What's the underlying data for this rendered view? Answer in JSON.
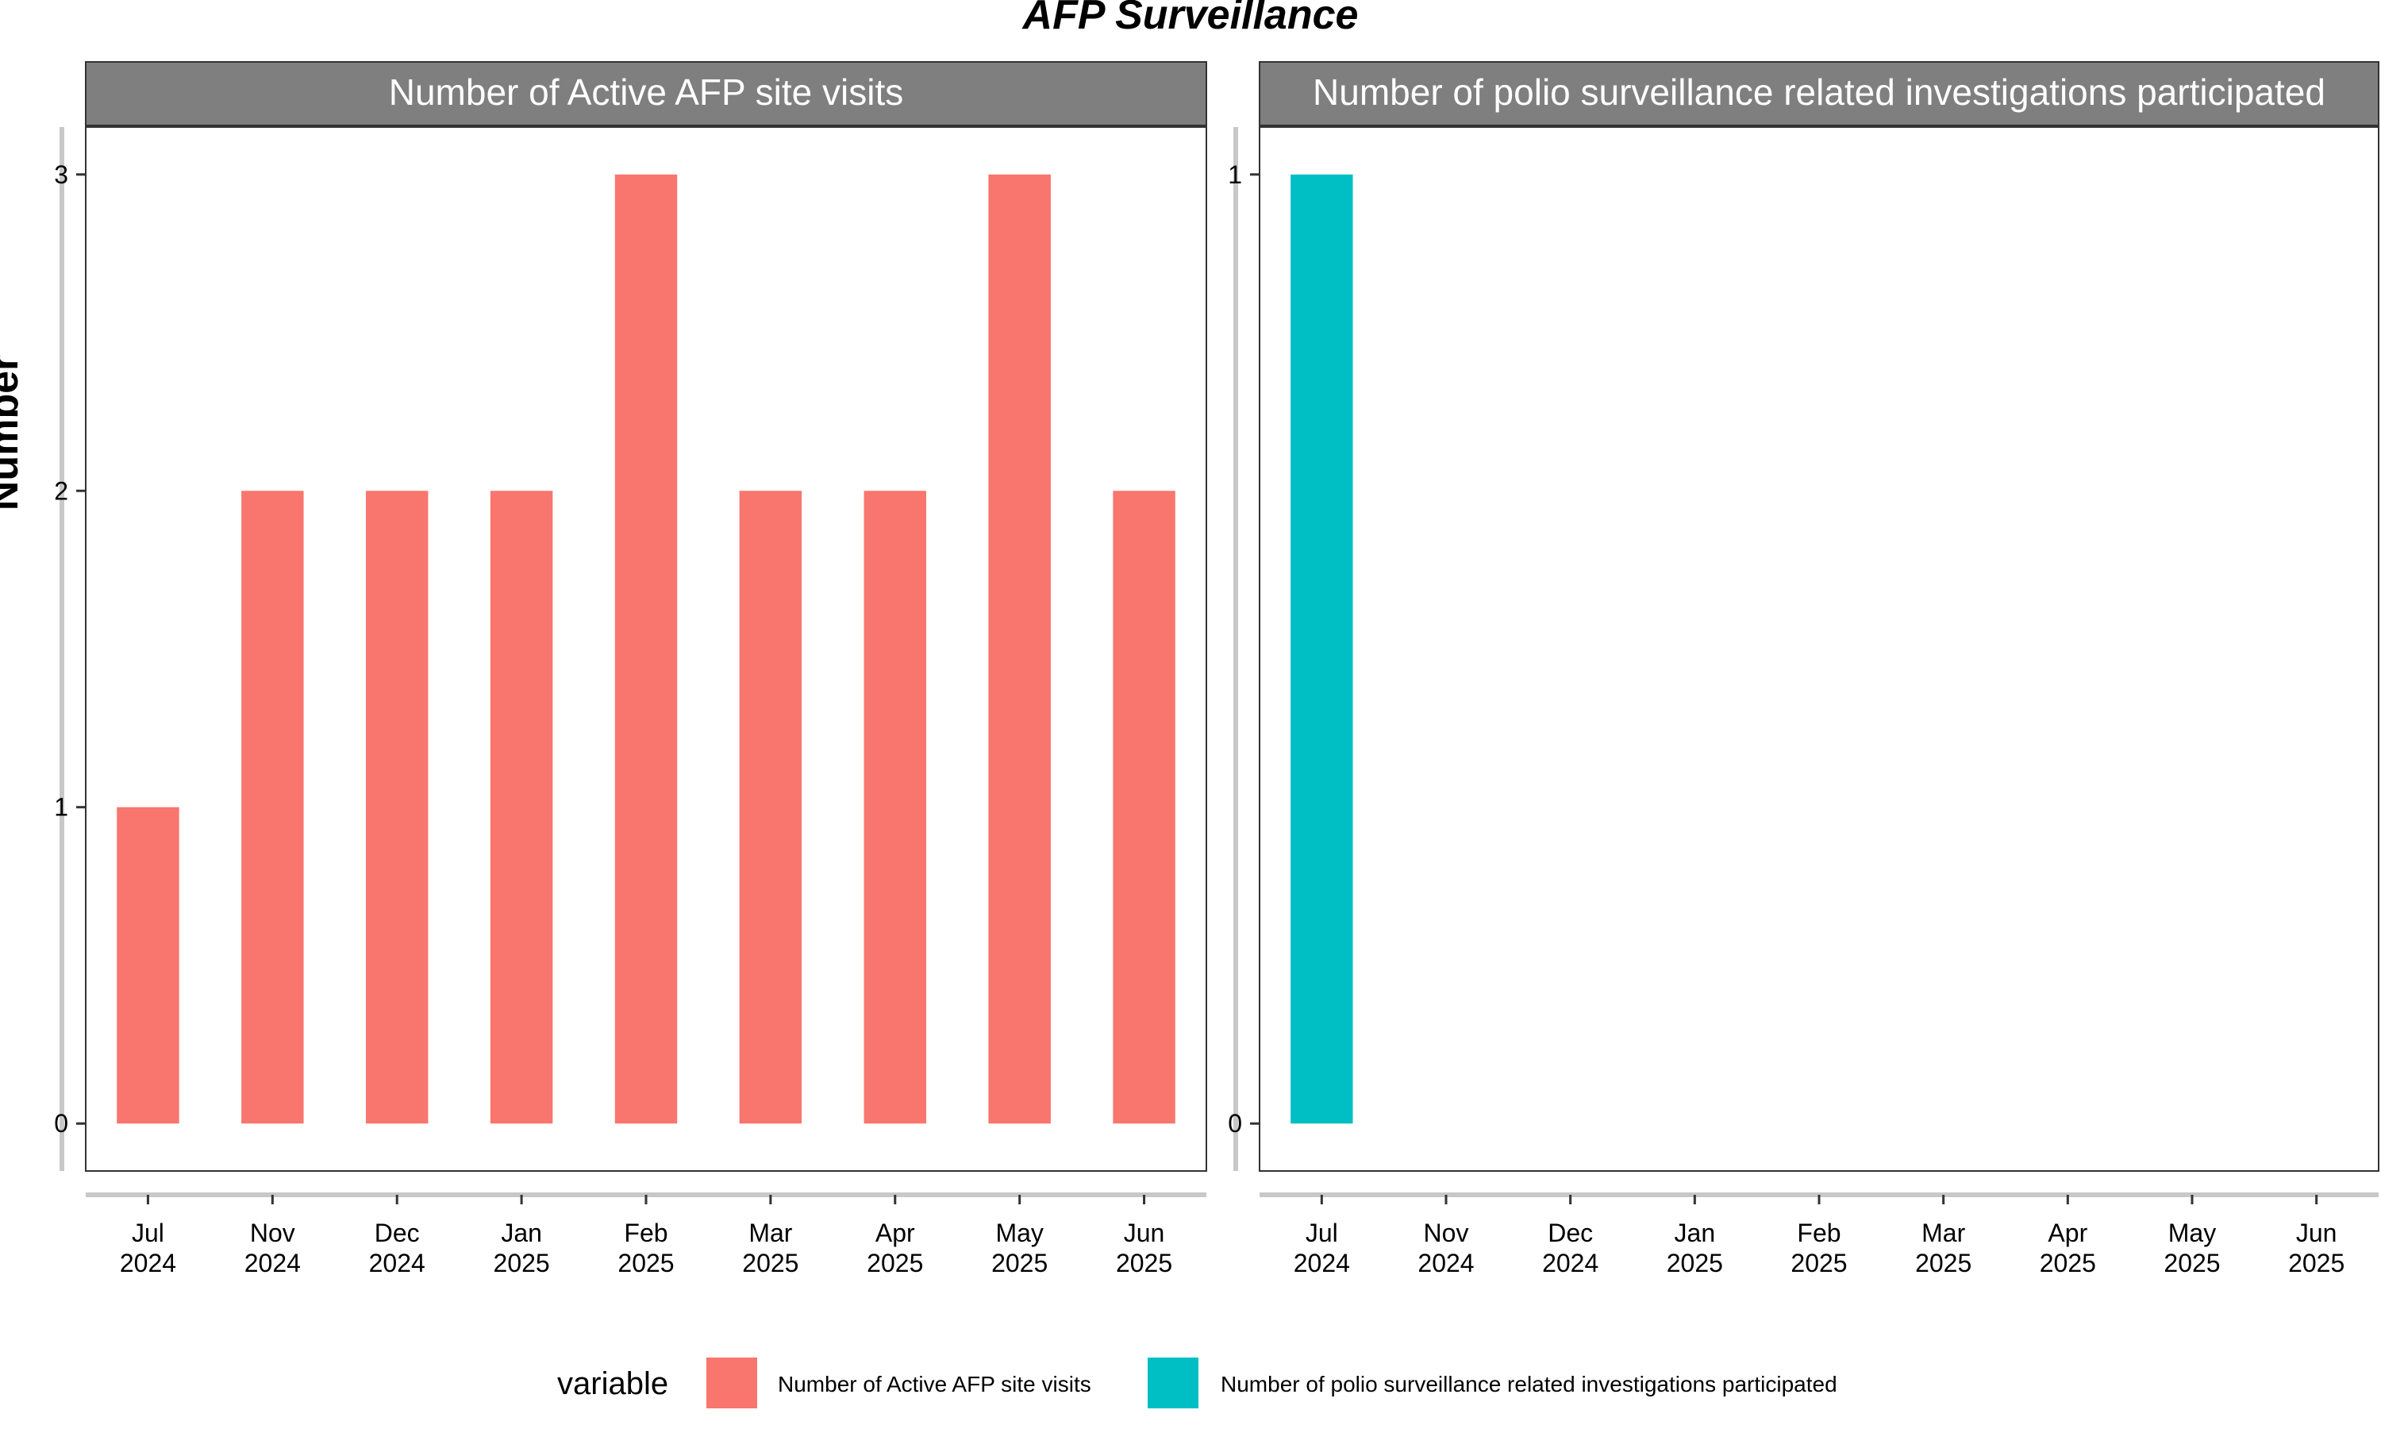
{
  "title": "AFP Surveillance",
  "y_axis_title": "Number",
  "legend": {
    "title": "variable",
    "items": [
      {
        "label": "Number of Active AFP site visits",
        "color": "#F8766D"
      },
      {
        "label": "Number of polio surveillance related investigations participated",
        "color": "#00BFC4"
      }
    ]
  },
  "chart_data": [
    {
      "type": "bar",
      "panel_title": "Number of Active AFP site visits",
      "categories": [
        [
          "Jul",
          "2024"
        ],
        [
          "Nov",
          "2024"
        ],
        [
          "Dec",
          "2024"
        ],
        [
          "Jan",
          "2025"
        ],
        [
          "Feb",
          "2025"
        ],
        [
          "Mar",
          "2025"
        ],
        [
          "Apr",
          "2025"
        ],
        [
          "May",
          "2025"
        ],
        [
          "Jun",
          "2025"
        ]
      ],
      "values": [
        1,
        2,
        2,
        2,
        3,
        2,
        2,
        3,
        2
      ],
      "color": "#F8766D",
      "yticks": [
        "0",
        "1",
        "2",
        "3"
      ],
      "ylim": [
        -0.15,
        3.15
      ]
    },
    {
      "type": "bar",
      "panel_title": "Number of polio surveillance related investigations participated",
      "categories": [
        [
          "Jul",
          "2024"
        ],
        [
          "Nov",
          "2024"
        ],
        [
          "Dec",
          "2024"
        ],
        [
          "Jan",
          "2025"
        ],
        [
          "Feb",
          "2025"
        ],
        [
          "Mar",
          "2025"
        ],
        [
          "Apr",
          "2025"
        ],
        [
          "May",
          "2025"
        ],
        [
          "Jun",
          "2025"
        ]
      ],
      "values": [
        1,
        null,
        null,
        null,
        null,
        null,
        null,
        null,
        null
      ],
      "color": "#00BFC4",
      "yticks": [
        "0",
        "1"
      ],
      "ylim": [
        -0.05,
        1.05
      ]
    }
  ]
}
